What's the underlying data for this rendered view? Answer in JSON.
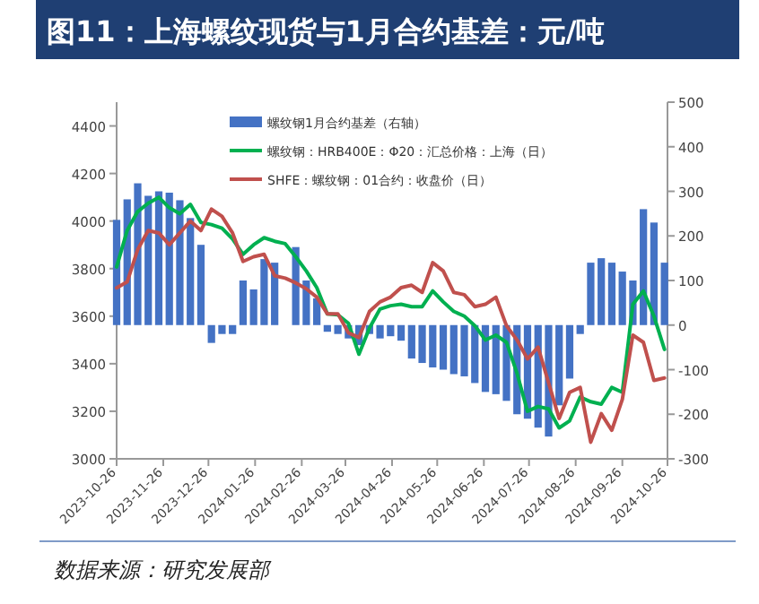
{
  "chart_data": {
    "type": "line",
    "title": "图11：上海螺纹现货与1月合约基差：元/吨",
    "annotations": [
      "数据来源：研究发展部"
    ],
    "x": [
      "2023-10-26",
      "2023-11-02",
      "2023-11-09",
      "2023-11-16",
      "2023-11-23",
      "2023-11-30",
      "2023-12-07",
      "2023-12-14",
      "2023-12-21",
      "2023-12-28",
      "2024-01-04",
      "2024-01-11",
      "2024-01-18",
      "2024-01-25",
      "2024-02-01",
      "2024-02-08",
      "2024-02-15",
      "2024-02-22",
      "2024-02-29",
      "2024-03-07",
      "2024-03-14",
      "2024-03-21",
      "2024-03-28",
      "2024-04-04",
      "2024-04-11",
      "2024-04-18",
      "2024-04-25",
      "2024-05-02",
      "2024-05-09",
      "2024-05-16",
      "2024-05-23",
      "2024-05-30",
      "2024-06-06",
      "2024-06-13",
      "2024-06-20",
      "2024-06-27",
      "2024-07-04",
      "2024-07-11",
      "2024-07-18",
      "2024-07-25",
      "2024-08-01",
      "2024-08-08",
      "2024-08-15",
      "2024-08-22",
      "2024-08-29",
      "2024-09-05",
      "2024-09-12",
      "2024-09-19",
      "2024-09-26",
      "2024-10-03",
      "2024-10-10",
      "2024-10-17",
      "2024-10-24"
    ],
    "series": [
      {
        "name": "螺纹钢1月合约基差（右轴）",
        "type": "bar",
        "axis": "y2",
        "color": "#4472c4",
        "values": [
          236,
          282,
          318,
          290,
          300,
          297,
          280,
          240,
          180,
          -40,
          -20,
          -20,
          100,
          80,
          148,
          140,
          null,
          175,
          100,
          60,
          -15,
          -20,
          -30,
          -45,
          -20,
          -30,
          -25,
          -35,
          -75,
          -85,
          -95,
          -100,
          -110,
          -115,
          -130,
          -150,
          -155,
          -170,
          -200,
          -210,
          -230,
          -250,
          -180,
          -120,
          -20,
          140,
          150,
          140,
          120,
          100,
          260,
          230,
          140
        ]
      },
      {
        "name": "螺纹钢：HRB400E：Φ20：汇总价格：上海（日）",
        "color": "#00b050",
        "values": [
          3807,
          3960,
          4040,
          4075,
          4100,
          4056,
          4031,
          4070,
          3994,
          3985,
          3970,
          3925,
          3860,
          3900,
          3930,
          3915,
          3905,
          3850,
          3790,
          3720,
          3610,
          3606,
          3570,
          3440,
          3550,
          3630,
          3644,
          3650,
          3640,
          3640,
          3706,
          3660,
          3620,
          3600,
          3560,
          3500,
          3520,
          3490,
          3360,
          3200,
          3220,
          3210,
          3130,
          3160,
          3260,
          3240,
          3230,
          3300,
          3280,
          3650,
          3706,
          3600,
          3460
        ]
      },
      {
        "name": "SHFE：螺纹钢：01合约：收盘价（日）",
        "color": "#c0504d",
        "values": [
          3719,
          3744,
          3880,
          3960,
          3950,
          3900,
          3950,
          4000,
          3960,
          4050,
          4020,
          3950,
          3830,
          3850,
          3860,
          3770,
          3760,
          3740,
          3715,
          3680,
          3610,
          3610,
          3530,
          3510,
          3620,
          3660,
          3680,
          3720,
          3730,
          3700,
          3825,
          3790,
          3700,
          3690,
          3640,
          3650,
          3680,
          3560,
          3500,
          3420,
          3470,
          3320,
          3170,
          3280,
          3300,
          3070,
          3190,
          3120,
          3250,
          3520,
          3490,
          3330,
          3340
        ]
      }
    ],
    "xlim": [
      "2023-10-26",
      "2024-10-26"
    ],
    "xticks": [
      "2023-10-26",
      "2023-11-26",
      "2023-12-26",
      "2024-01-26",
      "2024-02-26",
      "2024-03-26",
      "2024-04-26",
      "2024-05-26",
      "2024-06-26",
      "2024-07-26",
      "2024-08-26",
      "2024-09-26",
      "2024-10-26"
    ],
    "ylim": [
      3000,
      4500
    ],
    "yticks": [
      3000,
      3200,
      3400,
      3600,
      3800,
      4000,
      4200,
      4400
    ],
    "y2lim": [
      -300,
      500
    ],
    "y2ticks": [
      -300,
      -200,
      -100,
      0,
      100,
      200,
      300,
      400,
      500
    ],
    "legend": "top"
  }
}
